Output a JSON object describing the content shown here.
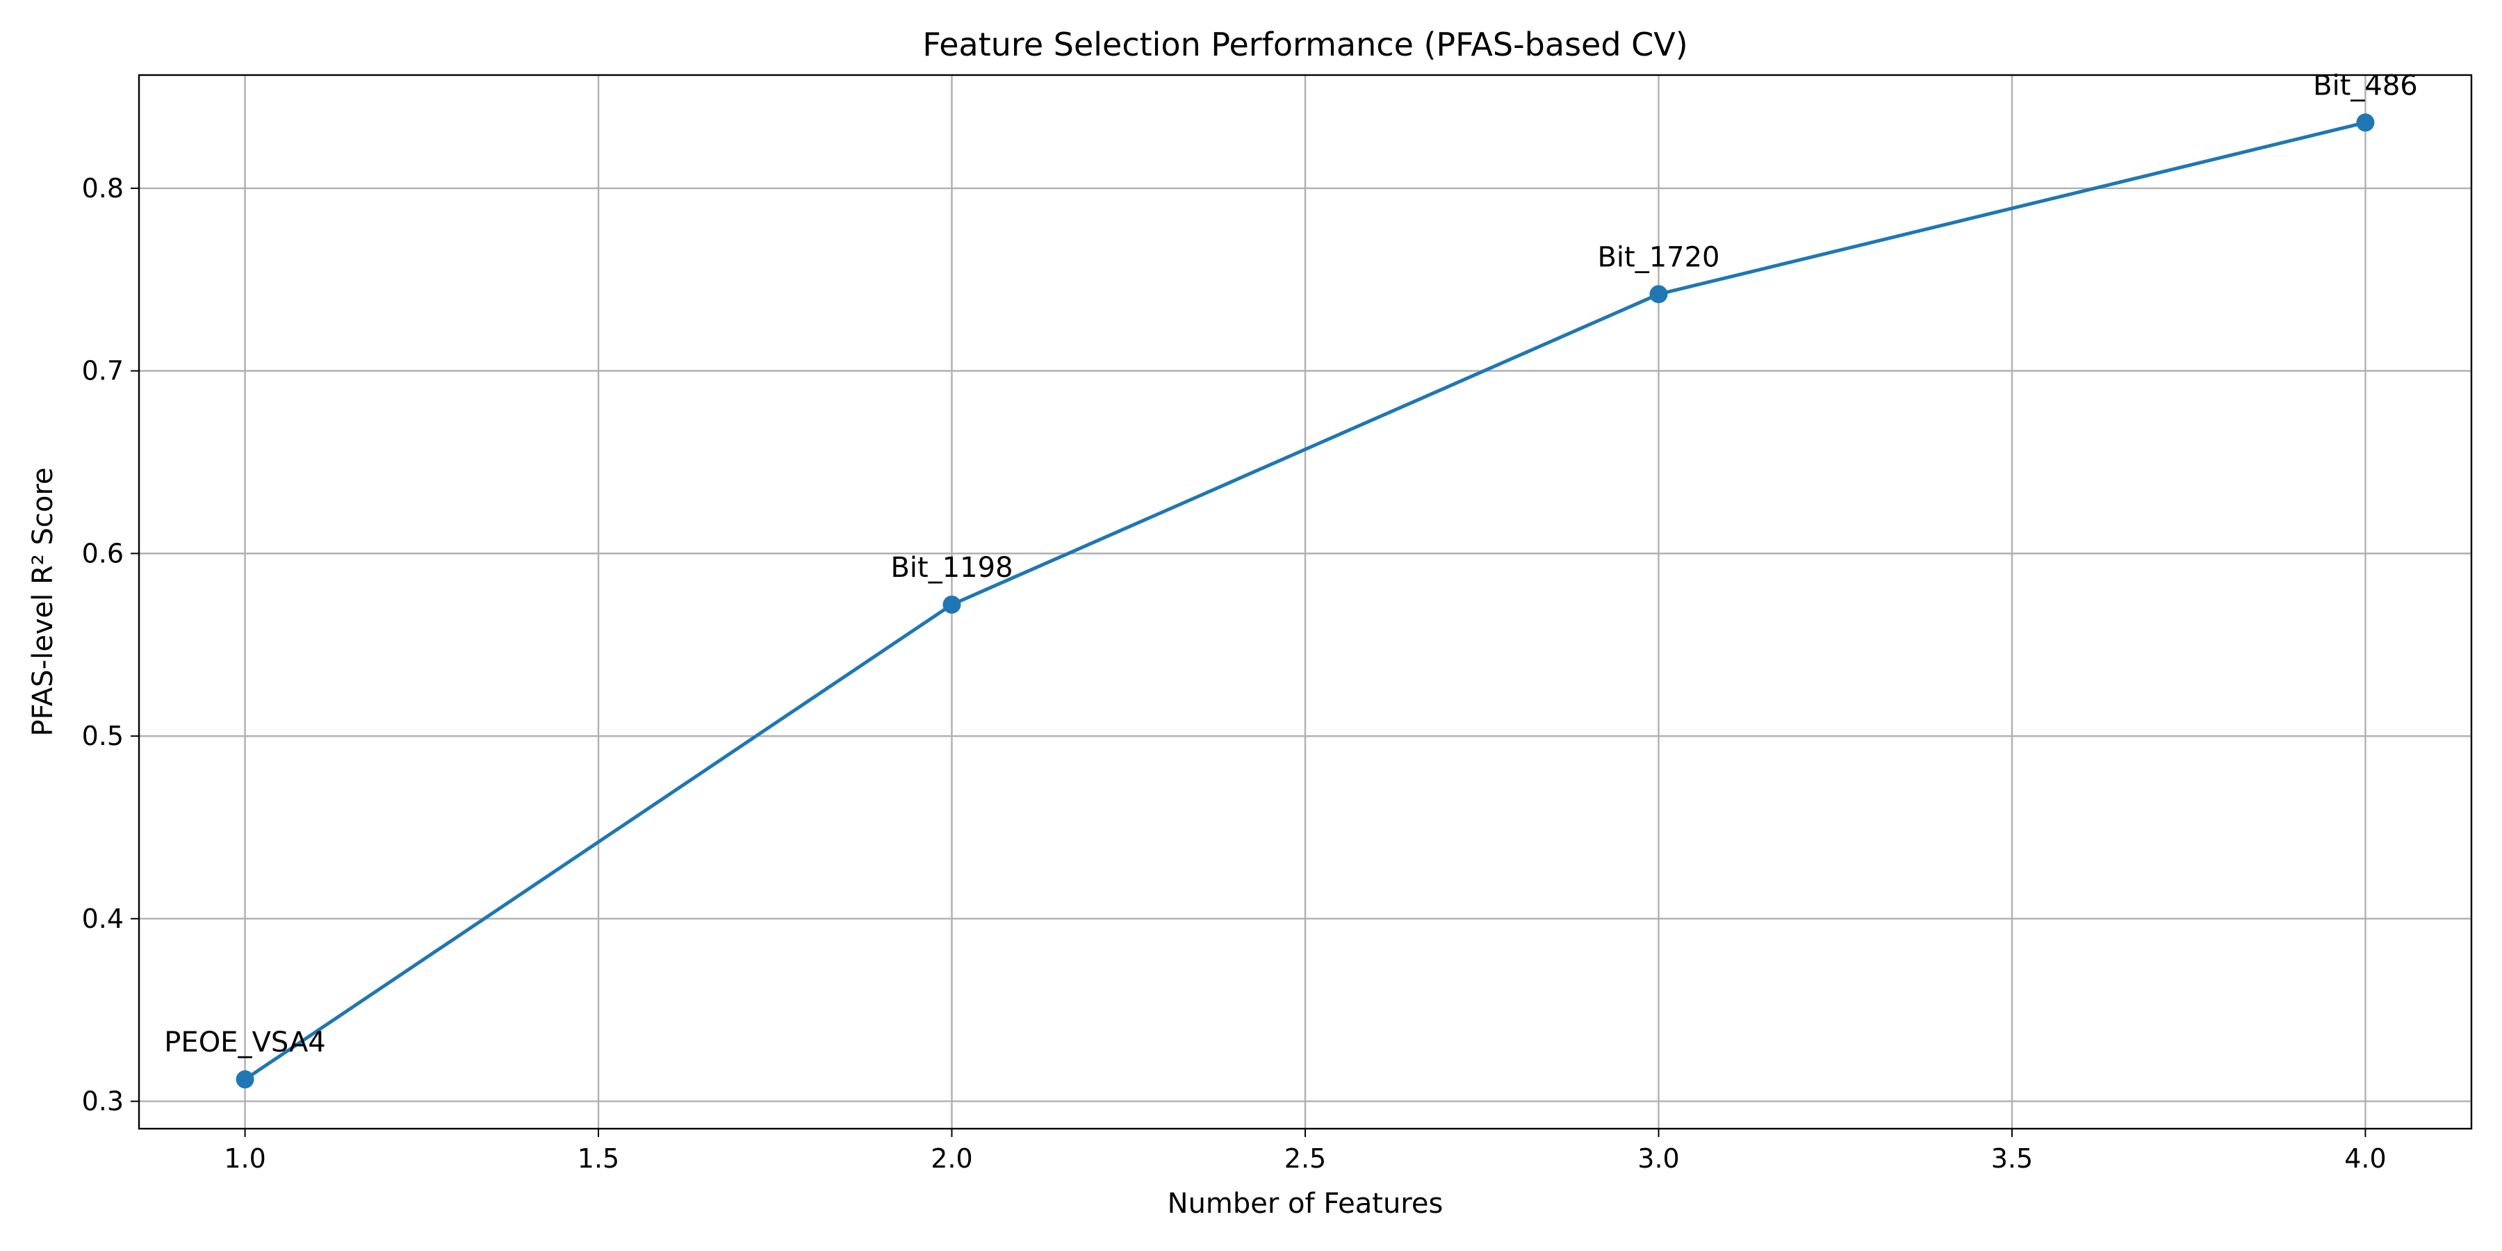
{
  "chart_data": {
    "type": "line",
    "title": "Feature Selection Performance (PFAS-based CV)",
    "xlabel": "Number of Features",
    "ylabel": "PFAS-level R² Score",
    "xlim": [
      0.85,
      4.15
    ],
    "ylim": [
      0.285,
      0.862
    ],
    "xticks": [
      1.0,
      1.5,
      2.0,
      2.5,
      3.0,
      3.5,
      4.0
    ],
    "xtick_labels": [
      "1.0",
      "1.5",
      "2.0",
      "2.5",
      "3.0",
      "3.5",
      "4.0"
    ],
    "yticks": [
      0.3,
      0.4,
      0.5,
      0.6,
      0.7,
      0.8
    ],
    "ytick_labels": [
      "0.3",
      "0.4",
      "0.5",
      "0.6",
      "0.7",
      "0.8"
    ],
    "grid": true,
    "color": "#1f77b4",
    "series": [
      {
        "x": [
          1,
          2,
          3,
          4
        ],
        "y": [
          0.312,
          0.572,
          0.742,
          0.836
        ],
        "point_labels": [
          "PEOE_VSA4",
          "Bit_1198",
          "Bit_1720",
          "Bit_486"
        ]
      }
    ]
  }
}
